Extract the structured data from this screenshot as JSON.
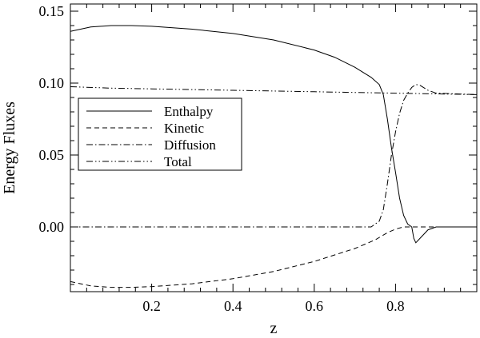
{
  "chart_data": {
    "type": "line",
    "title": "",
    "xlabel": "z",
    "ylabel": "Energy Fluxes",
    "xlim": [
      0.0,
      1.0
    ],
    "ylim": [
      -0.045,
      0.155
    ],
    "x_ticks": [
      0.2,
      0.4,
      0.6,
      0.8
    ],
    "x_tick_labels": [
      "0.2",
      "0.4",
      "0.6",
      "0.8"
    ],
    "y_ticks": [
      0.0,
      0.05,
      0.1,
      0.15
    ],
    "y_tick_labels": [
      "0.00",
      "0.05",
      "0.10",
      "0.15"
    ],
    "grid": false,
    "legend_position": "middle-left",
    "series": [
      {
        "name": "Enthalpy",
        "style": "solid",
        "points": [
          [
            0.0,
            0.136
          ],
          [
            0.05,
            0.139
          ],
          [
            0.1,
            0.14
          ],
          [
            0.15,
            0.14
          ],
          [
            0.2,
            0.1395
          ],
          [
            0.3,
            0.1375
          ],
          [
            0.4,
            0.1345
          ],
          [
            0.5,
            0.13
          ],
          [
            0.6,
            0.123
          ],
          [
            0.65,
            0.118
          ],
          [
            0.7,
            0.111
          ],
          [
            0.74,
            0.104
          ],
          [
            0.76,
            0.099
          ],
          [
            0.77,
            0.092
          ],
          [
            0.78,
            0.075
          ],
          [
            0.79,
            0.055
          ],
          [
            0.8,
            0.038
          ],
          [
            0.81,
            0.02
          ],
          [
            0.82,
            0.008
          ],
          [
            0.83,
            0.002
          ],
          [
            0.84,
            0.0
          ],
          [
            0.845,
            -0.008
          ],
          [
            0.85,
            -0.011
          ],
          [
            0.86,
            -0.008
          ],
          [
            0.88,
            -0.002
          ],
          [
            0.9,
            0.0
          ],
          [
            0.95,
            0.0
          ],
          [
            1.0,
            0.0
          ]
        ]
      },
      {
        "name": "Kinetic",
        "style": "dashed",
        "points": [
          [
            0.0,
            -0.038
          ],
          [
            0.05,
            -0.041
          ],
          [
            0.1,
            -0.042
          ],
          [
            0.15,
            -0.042
          ],
          [
            0.2,
            -0.0415
          ],
          [
            0.3,
            -0.0395
          ],
          [
            0.4,
            -0.036
          ],
          [
            0.5,
            -0.031
          ],
          [
            0.6,
            -0.024
          ],
          [
            0.7,
            -0.015
          ],
          [
            0.75,
            -0.009
          ],
          [
            0.78,
            -0.004
          ],
          [
            0.8,
            -0.0015
          ],
          [
            0.82,
            0.0
          ],
          [
            0.86,
            0.0
          ],
          [
            0.9,
            0.0
          ],
          [
            1.0,
            0.0
          ]
        ]
      },
      {
        "name": "Diffusion",
        "style": "dash-dot",
        "points": [
          [
            0.0,
            0.0
          ],
          [
            0.5,
            0.0
          ],
          [
            0.74,
            0.0
          ],
          [
            0.76,
            0.004
          ],
          [
            0.77,
            0.012
          ],
          [
            0.78,
            0.03
          ],
          [
            0.79,
            0.05
          ],
          [
            0.8,
            0.066
          ],
          [
            0.81,
            0.079
          ],
          [
            0.82,
            0.088
          ],
          [
            0.83,
            0.093
          ],
          [
            0.84,
            0.097
          ],
          [
            0.85,
            0.099
          ],
          [
            0.86,
            0.0985
          ],
          [
            0.88,
            0.095
          ],
          [
            0.9,
            0.093
          ],
          [
            0.95,
            0.0925
          ],
          [
            1.0,
            0.092
          ]
        ]
      },
      {
        "name": "Total",
        "style": "dash-dot-dot",
        "points": [
          [
            0.0,
            0.0975
          ],
          [
            0.1,
            0.0965
          ],
          [
            0.2,
            0.096
          ],
          [
            0.3,
            0.0955
          ],
          [
            0.4,
            0.095
          ],
          [
            0.5,
            0.0945
          ],
          [
            0.6,
            0.094
          ],
          [
            0.7,
            0.0935
          ],
          [
            0.8,
            0.093
          ],
          [
            0.9,
            0.0925
          ],
          [
            1.0,
            0.092
          ]
        ]
      }
    ]
  }
}
